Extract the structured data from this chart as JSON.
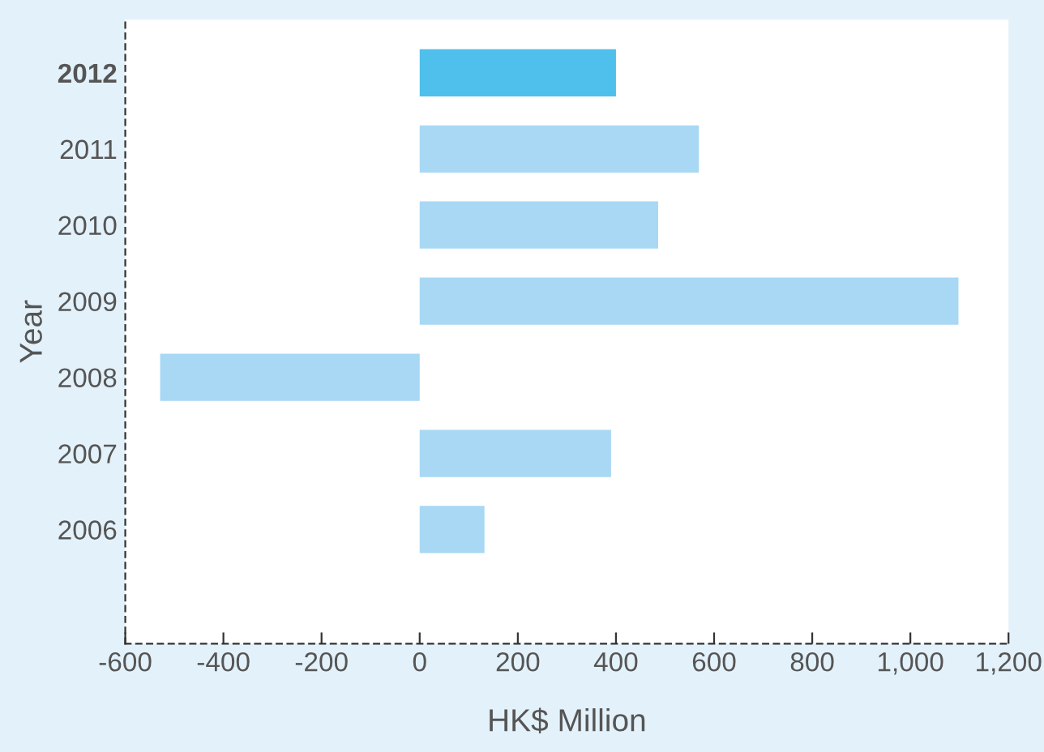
{
  "chart_data": {
    "type": "bar",
    "orientation": "horizontal",
    "xlabel": "HK$ Million",
    "ylabel": "Year",
    "categories": [
      "2012",
      "2011",
      "2010",
      "2009",
      "2008",
      "2007",
      "2006",
      null
    ],
    "values": [
      400,
      569,
      486,
      1098,
      -529,
      390,
      132,
      null
    ],
    "color": "#a8d8f4",
    "colors": [
      "#4fbfeb",
      "#a8d8f4",
      "#a8d8f4",
      "#a8d8f4",
      "#a8d8f4",
      "#a8d8f4",
      "#a8d8f4",
      "#a8d8f4"
    ],
    "xlim": [
      -600,
      1200
    ],
    "xticks": [
      -600,
      -400,
      -200,
      0,
      200,
      400,
      600,
      800,
      {
        "value": 1000,
        "label": "1,000"
      },
      {
        "value": 1200,
        "label": "1,200"
      }
    ],
    "grid": false,
    "legend": false
  }
}
